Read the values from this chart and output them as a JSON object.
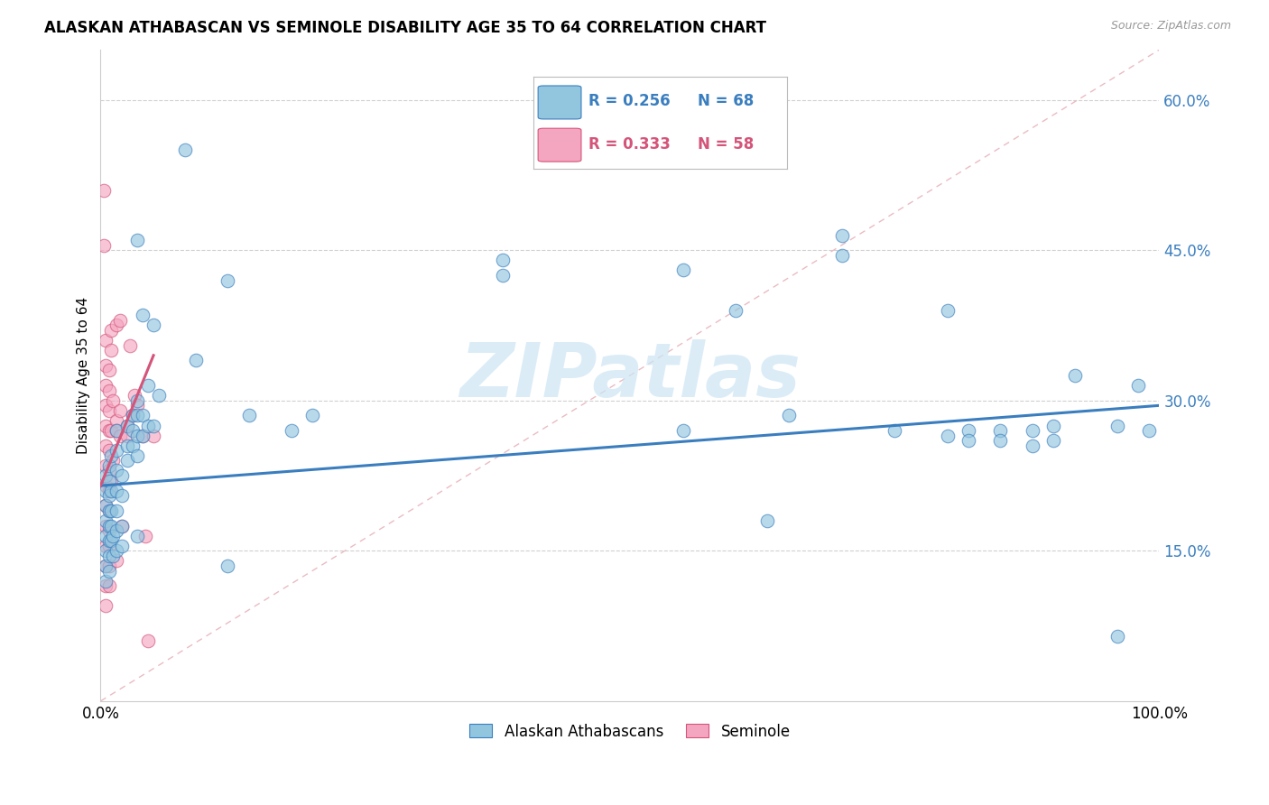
{
  "title": "ALASKAN ATHABASCAN VS SEMINOLE DISABILITY AGE 35 TO 64 CORRELATION CHART",
  "source": "Source: ZipAtlas.com",
  "ylabel": "Disability Age 35 to 64",
  "xlim": [
    0.0,
    1.0
  ],
  "ylim": [
    0.0,
    0.65
  ],
  "yticks": [
    0.15,
    0.3,
    0.45,
    0.6
  ],
  "ytick_labels": [
    "15.0%",
    "30.0%",
    "45.0%",
    "60.0%"
  ],
  "xtick_labels": [
    "0.0%",
    "100.0%"
  ],
  "legend_label1": "Alaskan Athabascans",
  "legend_label2": "Seminole",
  "color_blue": "#92c5de",
  "color_pink": "#f4a6c0",
  "line_color_blue": "#3a7ebf",
  "line_color_pink": "#d4547a",
  "diagonal_color": "#e8b4bc",
  "watermark_text": "ZIPatlas",
  "watermark_color": "#cce5f5",
  "blue_line": [
    [
      0.0,
      0.215
    ],
    [
      1.0,
      0.295
    ]
  ],
  "pink_line": [
    [
      0.0,
      0.215
    ],
    [
      0.05,
      0.345
    ]
  ],
  "blue_scatter": [
    [
      0.005,
      0.225
    ],
    [
      0.005,
      0.21
    ],
    [
      0.005,
      0.195
    ],
    [
      0.005,
      0.18
    ],
    [
      0.005,
      0.165
    ],
    [
      0.005,
      0.15
    ],
    [
      0.005,
      0.135
    ],
    [
      0.005,
      0.12
    ],
    [
      0.008,
      0.235
    ],
    [
      0.008,
      0.22
    ],
    [
      0.008,
      0.205
    ],
    [
      0.008,
      0.19
    ],
    [
      0.008,
      0.175
    ],
    [
      0.008,
      0.16
    ],
    [
      0.008,
      0.145
    ],
    [
      0.008,
      0.13
    ],
    [
      0.01,
      0.245
    ],
    [
      0.01,
      0.21
    ],
    [
      0.01,
      0.19
    ],
    [
      0.01,
      0.175
    ],
    [
      0.01,
      0.16
    ],
    [
      0.012,
      0.165
    ],
    [
      0.012,
      0.145
    ],
    [
      0.015,
      0.27
    ],
    [
      0.015,
      0.25
    ],
    [
      0.015,
      0.23
    ],
    [
      0.015,
      0.21
    ],
    [
      0.015,
      0.19
    ],
    [
      0.015,
      0.17
    ],
    [
      0.015,
      0.15
    ],
    [
      0.02,
      0.225
    ],
    [
      0.02,
      0.205
    ],
    [
      0.02,
      0.175
    ],
    [
      0.02,
      0.155
    ],
    [
      0.025,
      0.275
    ],
    [
      0.025,
      0.255
    ],
    [
      0.025,
      0.24
    ],
    [
      0.03,
      0.285
    ],
    [
      0.03,
      0.27
    ],
    [
      0.03,
      0.255
    ],
    [
      0.035,
      0.46
    ],
    [
      0.035,
      0.3
    ],
    [
      0.035,
      0.285
    ],
    [
      0.035,
      0.265
    ],
    [
      0.035,
      0.245
    ],
    [
      0.035,
      0.165
    ],
    [
      0.04,
      0.385
    ],
    [
      0.04,
      0.285
    ],
    [
      0.04,
      0.265
    ],
    [
      0.045,
      0.315
    ],
    [
      0.045,
      0.275
    ],
    [
      0.05,
      0.375
    ],
    [
      0.05,
      0.275
    ],
    [
      0.055,
      0.305
    ],
    [
      0.08,
      0.55
    ],
    [
      0.09,
      0.34
    ],
    [
      0.12,
      0.42
    ],
    [
      0.12,
      0.135
    ],
    [
      0.14,
      0.285
    ],
    [
      0.18,
      0.27
    ],
    [
      0.2,
      0.285
    ],
    [
      0.38,
      0.44
    ],
    [
      0.38,
      0.425
    ],
    [
      0.55,
      0.43
    ],
    [
      0.55,
      0.27
    ],
    [
      0.6,
      0.39
    ],
    [
      0.63,
      0.18
    ],
    [
      0.65,
      0.285
    ],
    [
      0.7,
      0.465
    ],
    [
      0.7,
      0.445
    ],
    [
      0.75,
      0.27
    ],
    [
      0.8,
      0.39
    ],
    [
      0.8,
      0.265
    ],
    [
      0.82,
      0.27
    ],
    [
      0.82,
      0.26
    ],
    [
      0.85,
      0.27
    ],
    [
      0.85,
      0.26
    ],
    [
      0.88,
      0.27
    ],
    [
      0.88,
      0.255
    ],
    [
      0.9,
      0.275
    ],
    [
      0.9,
      0.26
    ],
    [
      0.92,
      0.325
    ],
    [
      0.96,
      0.275
    ],
    [
      0.96,
      0.065
    ],
    [
      0.98,
      0.315
    ],
    [
      0.99,
      0.27
    ]
  ],
  "pink_scatter": [
    [
      0.003,
      0.51
    ],
    [
      0.003,
      0.455
    ],
    [
      0.005,
      0.36
    ],
    [
      0.005,
      0.335
    ],
    [
      0.005,
      0.315
    ],
    [
      0.005,
      0.295
    ],
    [
      0.005,
      0.275
    ],
    [
      0.005,
      0.255
    ],
    [
      0.005,
      0.235
    ],
    [
      0.005,
      0.215
    ],
    [
      0.005,
      0.195
    ],
    [
      0.005,
      0.175
    ],
    [
      0.005,
      0.155
    ],
    [
      0.005,
      0.135
    ],
    [
      0.005,
      0.115
    ],
    [
      0.005,
      0.095
    ],
    [
      0.008,
      0.33
    ],
    [
      0.008,
      0.31
    ],
    [
      0.008,
      0.29
    ],
    [
      0.008,
      0.27
    ],
    [
      0.008,
      0.25
    ],
    [
      0.008,
      0.23
    ],
    [
      0.008,
      0.21
    ],
    [
      0.008,
      0.19
    ],
    [
      0.008,
      0.17
    ],
    [
      0.008,
      0.155
    ],
    [
      0.008,
      0.135
    ],
    [
      0.008,
      0.115
    ],
    [
      0.01,
      0.37
    ],
    [
      0.01,
      0.35
    ],
    [
      0.01,
      0.27
    ],
    [
      0.01,
      0.22
    ],
    [
      0.012,
      0.3
    ],
    [
      0.012,
      0.24
    ],
    [
      0.015,
      0.375
    ],
    [
      0.015,
      0.28
    ],
    [
      0.015,
      0.27
    ],
    [
      0.015,
      0.14
    ],
    [
      0.018,
      0.38
    ],
    [
      0.018,
      0.29
    ],
    [
      0.018,
      0.265
    ],
    [
      0.02,
      0.175
    ],
    [
      0.025,
      0.275
    ],
    [
      0.025,
      0.265
    ],
    [
      0.028,
      0.355
    ],
    [
      0.03,
      0.285
    ],
    [
      0.032,
      0.305
    ],
    [
      0.035,
      0.295
    ],
    [
      0.04,
      0.265
    ],
    [
      0.042,
      0.165
    ],
    [
      0.045,
      0.06
    ],
    [
      0.05,
      0.265
    ]
  ]
}
